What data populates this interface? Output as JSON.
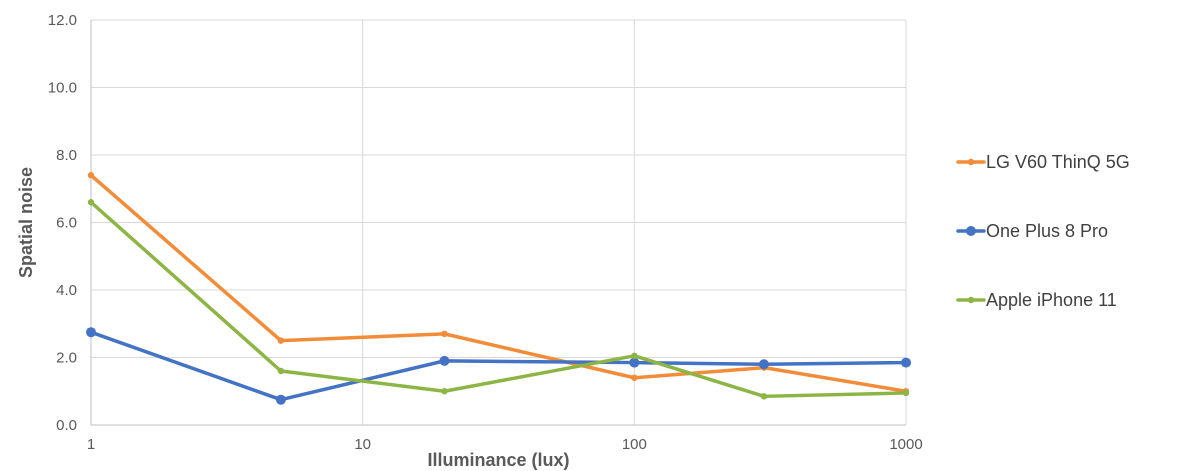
{
  "chart_data": {
    "type": "line",
    "title": "",
    "xlabel": "Illuminance (lux)",
    "ylabel": "Spatial noise",
    "x_scale": "log",
    "xlim": [
      1,
      1000
    ],
    "ylim": [
      0,
      12
    ],
    "x_ticks": [
      "1",
      "10",
      "100",
      "1000"
    ],
    "y_ticks": [
      "0.0",
      "2.0",
      "4.0",
      "6.0",
      "8.0",
      "10.0",
      "12.0"
    ],
    "grid": true,
    "legend_position": "right",
    "series": [
      {
        "name": "LG V60 ThinQ 5G",
        "color": "#F28C38",
        "marker": "small",
        "x": [
          1,
          5,
          20,
          100,
          300,
          1000
        ],
        "y": [
          7.4,
          2.5,
          2.7,
          1.4,
          1.7,
          1.0
        ]
      },
      {
        "name": "One Plus 8 Pro",
        "color": "#4472C4",
        "marker": "large",
        "x": [
          1,
          5,
          20,
          100,
          300,
          1000
        ],
        "y": [
          2.75,
          0.75,
          1.9,
          1.85,
          1.8,
          1.85
        ]
      },
      {
        "name": "Apple iPhone 11",
        "color": "#8DB546",
        "marker": "small",
        "x": [
          1,
          5,
          20,
          100,
          300,
          1000
        ],
        "y": [
          6.6,
          1.6,
          1.0,
          2.05,
          0.85,
          0.95
        ]
      }
    ]
  }
}
